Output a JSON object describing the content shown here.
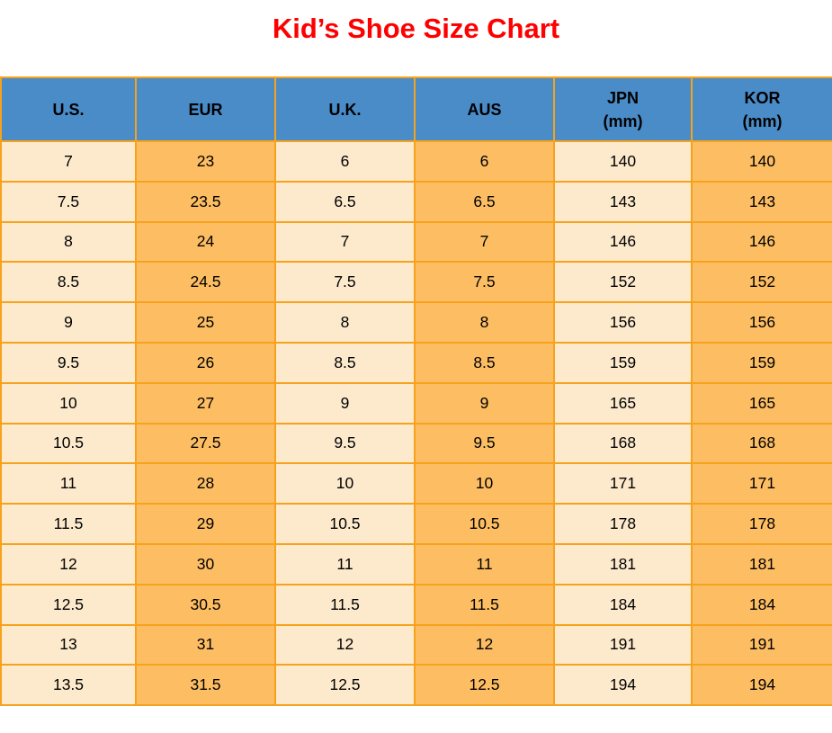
{
  "title": "Kid’s Shoe Size Chart",
  "colors": {
    "title_red": "#fe0000",
    "header_blue": "#4a8cc8",
    "header_text": "#000000",
    "cell_cream": "#fdeacd",
    "cell_orange": "#fdbe63",
    "grid_orange": "#f6a21d",
    "cell_text": "#000000"
  },
  "table": {
    "headers": [
      {
        "key": "us",
        "line1": "U.S.",
        "line2": ""
      },
      {
        "key": "eur",
        "line1": "EUR",
        "line2": ""
      },
      {
        "key": "uk",
        "line1": "U.K.",
        "line2": ""
      },
      {
        "key": "aus",
        "line1": "AUS",
        "line2": ""
      },
      {
        "key": "jpn",
        "line1": "JPN",
        "line2": "(mm)"
      },
      {
        "key": "kor",
        "line1": "KOR",
        "line2": "(mm)"
      }
    ],
    "rows": [
      [
        "7",
        "23",
        "6",
        "6",
        "140",
        "140"
      ],
      [
        "7.5",
        "23.5",
        "6.5",
        "6.5",
        "143",
        "143"
      ],
      [
        "8",
        "24",
        "7",
        "7",
        "146",
        "146"
      ],
      [
        "8.5",
        "24.5",
        "7.5",
        "7.5",
        "152",
        "152"
      ],
      [
        "9",
        "25",
        "8",
        "8",
        "156",
        "156"
      ],
      [
        "9.5",
        "26",
        "8.5",
        "8.5",
        "159",
        "159"
      ],
      [
        "10",
        "27",
        "9",
        "9",
        "165",
        "165"
      ],
      [
        "10.5",
        "27.5",
        "9.5",
        "9.5",
        "168",
        "168"
      ],
      [
        "11",
        "28",
        "10",
        "10",
        "171",
        "171"
      ],
      [
        "11.5",
        "29",
        "10.5",
        "10.5",
        "178",
        "178"
      ],
      [
        "12",
        "30",
        "11",
        "11",
        "181",
        "181"
      ],
      [
        "12.5",
        "30.5",
        "11.5",
        "11.5",
        "184",
        "184"
      ],
      [
        "13",
        "31",
        "12",
        "12",
        "191",
        "191"
      ],
      [
        "13.5",
        "31.5",
        "12.5",
        "12.5",
        "194",
        "194"
      ]
    ]
  },
  "chart_data": {
    "type": "table",
    "title": "Kid’s Shoe Size Chart",
    "columns": [
      "U.S.",
      "EUR",
      "U.K.",
      "AUS",
      "JPN (mm)",
      "KOR (mm)"
    ],
    "rows": [
      [
        7,
        23,
        6,
        6,
        140,
        140
      ],
      [
        7.5,
        23.5,
        6.5,
        6.5,
        143,
        143
      ],
      [
        8,
        24,
        7,
        7,
        146,
        146
      ],
      [
        8.5,
        24.5,
        7.5,
        7.5,
        152,
        152
      ],
      [
        9,
        25,
        8,
        8,
        156,
        156
      ],
      [
        9.5,
        26,
        8.5,
        8.5,
        159,
        159
      ],
      [
        10,
        27,
        9,
        9,
        165,
        165
      ],
      [
        10.5,
        27.5,
        9.5,
        9.5,
        168,
        168
      ],
      [
        11,
        28,
        10,
        10,
        171,
        171
      ],
      [
        11.5,
        29,
        10.5,
        10.5,
        178,
        178
      ],
      [
        12,
        30,
        11,
        11,
        181,
        181
      ],
      [
        12.5,
        30.5,
        11.5,
        11.5,
        184,
        184
      ],
      [
        13,
        31,
        12,
        12,
        191,
        191
      ],
      [
        13.5,
        31.5,
        12.5,
        12.5,
        194,
        194
      ]
    ],
    "layout": {
      "header_position": "top",
      "column_striping": [
        "cream",
        "orange"
      ],
      "grid": true
    }
  }
}
